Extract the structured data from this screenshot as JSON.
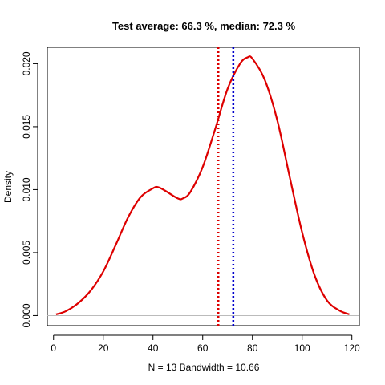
{
  "chart_data": {
    "type": "line",
    "title": "Test average: 66.3 %, median: 72.3 %",
    "xlabel": "N = 13   Bandwidth = 10.66",
    "ylabel": "Density",
    "xlim": [
      -2.5,
      123
    ],
    "ylim": [
      -0.0008,
      0.0213
    ],
    "x_ticks": [
      "0",
      "20",
      "40",
      "60",
      "80",
      "100",
      "120"
    ],
    "y_ticks": [
      "0.000",
      "0.005",
      "0.010",
      "0.015",
      "0.020"
    ],
    "x_tick_values": [
      0,
      20,
      40,
      60,
      80,
      100,
      120
    ],
    "y_tick_values": [
      0,
      0.005,
      0.01,
      0.015,
      0.02
    ],
    "grid": false,
    "series": [
      {
        "color": "#dd0000",
        "x": [
          1,
          5,
          10,
          15,
          20,
          25,
          30,
          35,
          40,
          42,
          45,
          50,
          52,
          55,
          60,
          65,
          70,
          75,
          78,
          80,
          85,
          90,
          95,
          100,
          105,
          110,
          115,
          119
        ],
        "y": [
          0.0001,
          0.00035,
          0.001,
          0.002,
          0.0035,
          0.0056,
          0.0078,
          0.0094,
          0.0101,
          0.0102,
          0.0099,
          0.0093,
          0.0093,
          0.0098,
          0.0118,
          0.0148,
          0.018,
          0.02,
          0.0205,
          0.0204,
          0.0187,
          0.0155,
          0.011,
          0.0066,
          0.0032,
          0.0012,
          0.0004,
          0.0001
        ]
      }
    ],
    "reference_lines": [
      {
        "x": 66.3,
        "color": "#dd0000",
        "style": "dotted"
      },
      {
        "x": 72.3,
        "color": "#0000cc",
        "style": "dotted"
      }
    ],
    "baseline": {
      "y": 0,
      "color": "#bbbbbb"
    }
  }
}
